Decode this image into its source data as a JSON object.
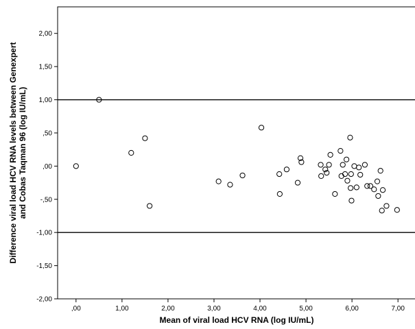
{
  "chart_data": {
    "type": "scatter",
    "xlabel": "Mean of viral load HCV RNA (log IU/mL)",
    "ylabel_lines": [
      "Difference viral load HCV RNA levels between Genexpert",
      "and Cobas Taqman 96 (log IU/mL)"
    ],
    "xlim": [
      -0.4,
      7.4
    ],
    "ylim": [
      -2.0,
      2.4
    ],
    "x_ticks": [
      0,
      1,
      2,
      3,
      4,
      5,
      6,
      7
    ],
    "x_tick_labels": [
      ",00",
      "1,00",
      "2,00",
      "3,00",
      "4,00",
      "5,00",
      "6,00",
      "7,00"
    ],
    "y_ticks": [
      2.0,
      1.5,
      1.0,
      0.5,
      0.0,
      -0.5,
      -1.0,
      -1.5,
      -2.0
    ],
    "y_tick_labels": [
      "2,00",
      "1,50",
      "1,00",
      ",50",
      ",00",
      "-,50",
      "-1,00",
      "-1,50",
      "-2,00"
    ],
    "reference_lines": [
      1.0,
      -1.0
    ],
    "grid": false,
    "points": [
      {
        "x": 0.0,
        "y": 0.0
      },
      {
        "x": 0.5,
        "y": 1.0
      },
      {
        "x": 1.2,
        "y": 0.2
      },
      {
        "x": 1.5,
        "y": 0.42
      },
      {
        "x": 1.6,
        "y": -0.6
      },
      {
        "x": 3.1,
        "y": -0.23
      },
      {
        "x": 3.35,
        "y": -0.28
      },
      {
        "x": 3.62,
        "y": -0.14
      },
      {
        "x": 4.03,
        "y": 0.58
      },
      {
        "x": 4.42,
        "y": -0.12
      },
      {
        "x": 4.43,
        "y": -0.42
      },
      {
        "x": 4.58,
        "y": -0.05
      },
      {
        "x": 4.82,
        "y": -0.25
      },
      {
        "x": 4.88,
        "y": 0.12
      },
      {
        "x": 4.9,
        "y": 0.06
      },
      {
        "x": 5.32,
        "y": 0.02
      },
      {
        "x": 5.33,
        "y": -0.15
      },
      {
        "x": 5.42,
        "y": -0.05
      },
      {
        "x": 5.45,
        "y": -0.1
      },
      {
        "x": 5.5,
        "y": 0.02
      },
      {
        "x": 5.53,
        "y": 0.17
      },
      {
        "x": 5.63,
        "y": -0.42
      },
      {
        "x": 5.75,
        "y": 0.23
      },
      {
        "x": 5.77,
        "y": -0.15
      },
      {
        "x": 5.8,
        "y": 0.02
      },
      {
        "x": 5.85,
        "y": -0.12
      },
      {
        "x": 5.88,
        "y": 0.1
      },
      {
        "x": 5.9,
        "y": -0.22
      },
      {
        "x": 5.96,
        "y": 0.43
      },
      {
        "x": 5.97,
        "y": -0.33
      },
      {
        "x": 5.98,
        "y": -0.12
      },
      {
        "x": 5.99,
        "y": -0.52
      },
      {
        "x": 6.05,
        "y": 0.0
      },
      {
        "x": 6.1,
        "y": -0.32
      },
      {
        "x": 6.15,
        "y": -0.02
      },
      {
        "x": 6.18,
        "y": -0.13
      },
      {
        "x": 6.28,
        "y": 0.02
      },
      {
        "x": 6.33,
        "y": -0.3
      },
      {
        "x": 6.4,
        "y": -0.3
      },
      {
        "x": 6.48,
        "y": -0.35
      },
      {
        "x": 6.55,
        "y": -0.23
      },
      {
        "x": 6.57,
        "y": -0.45
      },
      {
        "x": 6.62,
        "y": -0.07
      },
      {
        "x": 6.65,
        "y": -0.67
      },
      {
        "x": 6.67,
        "y": -0.36
      },
      {
        "x": 6.75,
        "y": -0.6
      },
      {
        "x": 6.98,
        "y": -0.66
      }
    ]
  }
}
